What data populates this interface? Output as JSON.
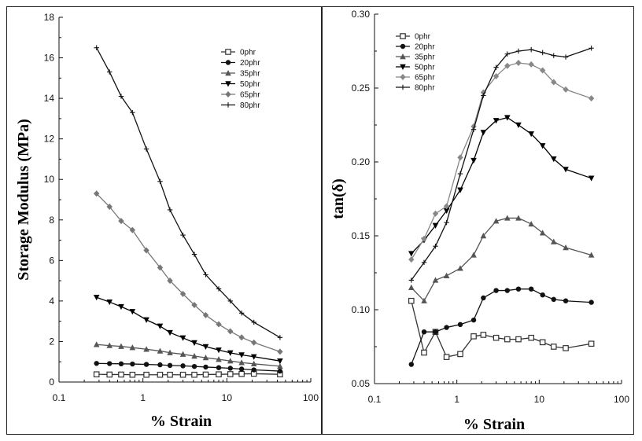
{
  "chart_data": [
    {
      "type": "line",
      "title": "",
      "xlabel": "% Strain",
      "ylabel": "Storage Modulus (MPa)",
      "xscale": "log",
      "xlim": [
        0.1,
        100
      ],
      "ylim": [
        0,
        18
      ],
      "xticks": [
        0.1,
        1,
        10,
        100
      ],
      "xtick_labels": [
        "0.1",
        "1",
        "10",
        "100"
      ],
      "yticks": [
        0,
        2,
        4,
        6,
        8,
        10,
        12,
        14,
        16,
        18
      ],
      "ytick_labels": [
        "0",
        "2",
        "4",
        "6",
        "8",
        "10",
        "12",
        "14",
        "16",
        "18"
      ],
      "legend_position": "top-right",
      "x": [
        0.28,
        0.4,
        0.55,
        0.75,
        1.1,
        1.6,
        2.1,
        3.0,
        4.1,
        5.6,
        8.0,
        11.0,
        15.0,
        21.0,
        43.0
      ],
      "series": [
        {
          "name": "0phr",
          "marker": "square",
          "color": "#333333",
          "values": [
            0.38,
            0.37,
            0.37,
            0.36,
            0.36,
            0.36,
            0.36,
            0.36,
            0.36,
            0.37,
            0.38,
            0.39,
            0.4,
            0.41,
            0.38
          ]
        },
        {
          "name": "20phr",
          "marker": "circle",
          "color": "#111111",
          "values": [
            0.92,
            0.91,
            0.9,
            0.89,
            0.87,
            0.85,
            0.82,
            0.8,
            0.77,
            0.74,
            0.71,
            0.68,
            0.64,
            0.6,
            0.54
          ]
        },
        {
          "name": "35phr",
          "marker": "triangle-up",
          "color": "#555555",
          "values": [
            1.85,
            1.8,
            1.76,
            1.7,
            1.62,
            1.53,
            1.45,
            1.37,
            1.28,
            1.2,
            1.12,
            1.04,
            0.96,
            0.9,
            0.78
          ]
        },
        {
          "name": "50phr",
          "marker": "triangle-down",
          "color": "#000000",
          "values": [
            4.18,
            3.95,
            3.72,
            3.48,
            3.07,
            2.76,
            2.44,
            2.18,
            1.94,
            1.75,
            1.58,
            1.44,
            1.34,
            1.25,
            1.04
          ]
        },
        {
          "name": "65phr",
          "marker": "diamond",
          "color": "#777777",
          "values": [
            9.3,
            8.65,
            7.95,
            7.5,
            6.5,
            5.65,
            5.0,
            4.35,
            3.8,
            3.3,
            2.85,
            2.5,
            2.2,
            1.95,
            1.5
          ]
        },
        {
          "name": "80phr",
          "marker": "plus",
          "color": "#111111",
          "values": [
            16.5,
            15.3,
            14.1,
            13.3,
            11.5,
            9.9,
            8.5,
            7.25,
            6.3,
            5.3,
            4.6,
            4.0,
            3.4,
            2.95,
            2.2
          ]
        }
      ]
    },
    {
      "type": "line",
      "title": "",
      "xlabel": "% Strain",
      "ylabel": "tan(δ)",
      "xscale": "log",
      "xlim": [
        0.1,
        100
      ],
      "ylim": [
        0.05,
        0.3
      ],
      "xticks": [
        0.1,
        1,
        10,
        100
      ],
      "xtick_labels": [
        "0.1",
        "1",
        "10",
        "100"
      ],
      "yticks": [
        0.05,
        0.1,
        0.15,
        0.2,
        0.25,
        0.3
      ],
      "ytick_labels": [
        "0.05",
        "0.10",
        "0.15",
        "0.20",
        "0.25",
        "0.30"
      ],
      "legend_position": "top-left",
      "x": [
        0.28,
        0.4,
        0.55,
        0.75,
        1.1,
        1.6,
        2.1,
        3.0,
        4.1,
        5.6,
        8.0,
        11.0,
        15.0,
        21.0,
        43.0
      ],
      "series": [
        {
          "name": "0phr",
          "marker": "square",
          "color": "#333333",
          "values": [
            0.106,
            0.071,
            0.085,
            0.068,
            0.07,
            0.082,
            0.083,
            0.081,
            0.08,
            0.08,
            0.081,
            0.078,
            0.075,
            0.074,
            0.077
          ]
        },
        {
          "name": "20phr",
          "marker": "circle",
          "color": "#111111",
          "values": [
            0.063,
            0.085,
            0.085,
            0.088,
            0.09,
            0.093,
            0.108,
            0.113,
            0.113,
            0.114,
            0.114,
            0.11,
            0.107,
            0.106,
            0.105
          ]
        },
        {
          "name": "35phr",
          "marker": "triangle-up",
          "color": "#555555",
          "values": [
            0.115,
            0.106,
            0.12,
            0.123,
            0.128,
            0.137,
            0.15,
            0.16,
            0.162,
            0.162,
            0.158,
            0.152,
            0.146,
            0.142,
            0.137
          ]
        },
        {
          "name": "50phr",
          "marker": "triangle-down",
          "color": "#000000",
          "values": [
            0.138,
            0.147,
            0.157,
            0.167,
            0.181,
            0.201,
            0.22,
            0.228,
            0.23,
            0.225,
            0.219,
            0.211,
            0.202,
            0.195,
            0.189
          ]
        },
        {
          "name": "65phr",
          "marker": "diamond",
          "color": "#888888",
          "values": [
            0.134,
            0.148,
            0.165,
            0.17,
            0.203,
            0.224,
            0.247,
            0.258,
            0.265,
            0.267,
            0.266,
            0.262,
            0.254,
            0.249,
            0.243
          ]
        },
        {
          "name": "80phr",
          "marker": "plus",
          "color": "#111111",
          "values": [
            0.12,
            0.132,
            0.143,
            0.159,
            0.192,
            0.222,
            0.245,
            0.264,
            0.273,
            0.275,
            0.276,
            0.274,
            0.272,
            0.271,
            0.277
          ]
        }
      ]
    }
  ]
}
